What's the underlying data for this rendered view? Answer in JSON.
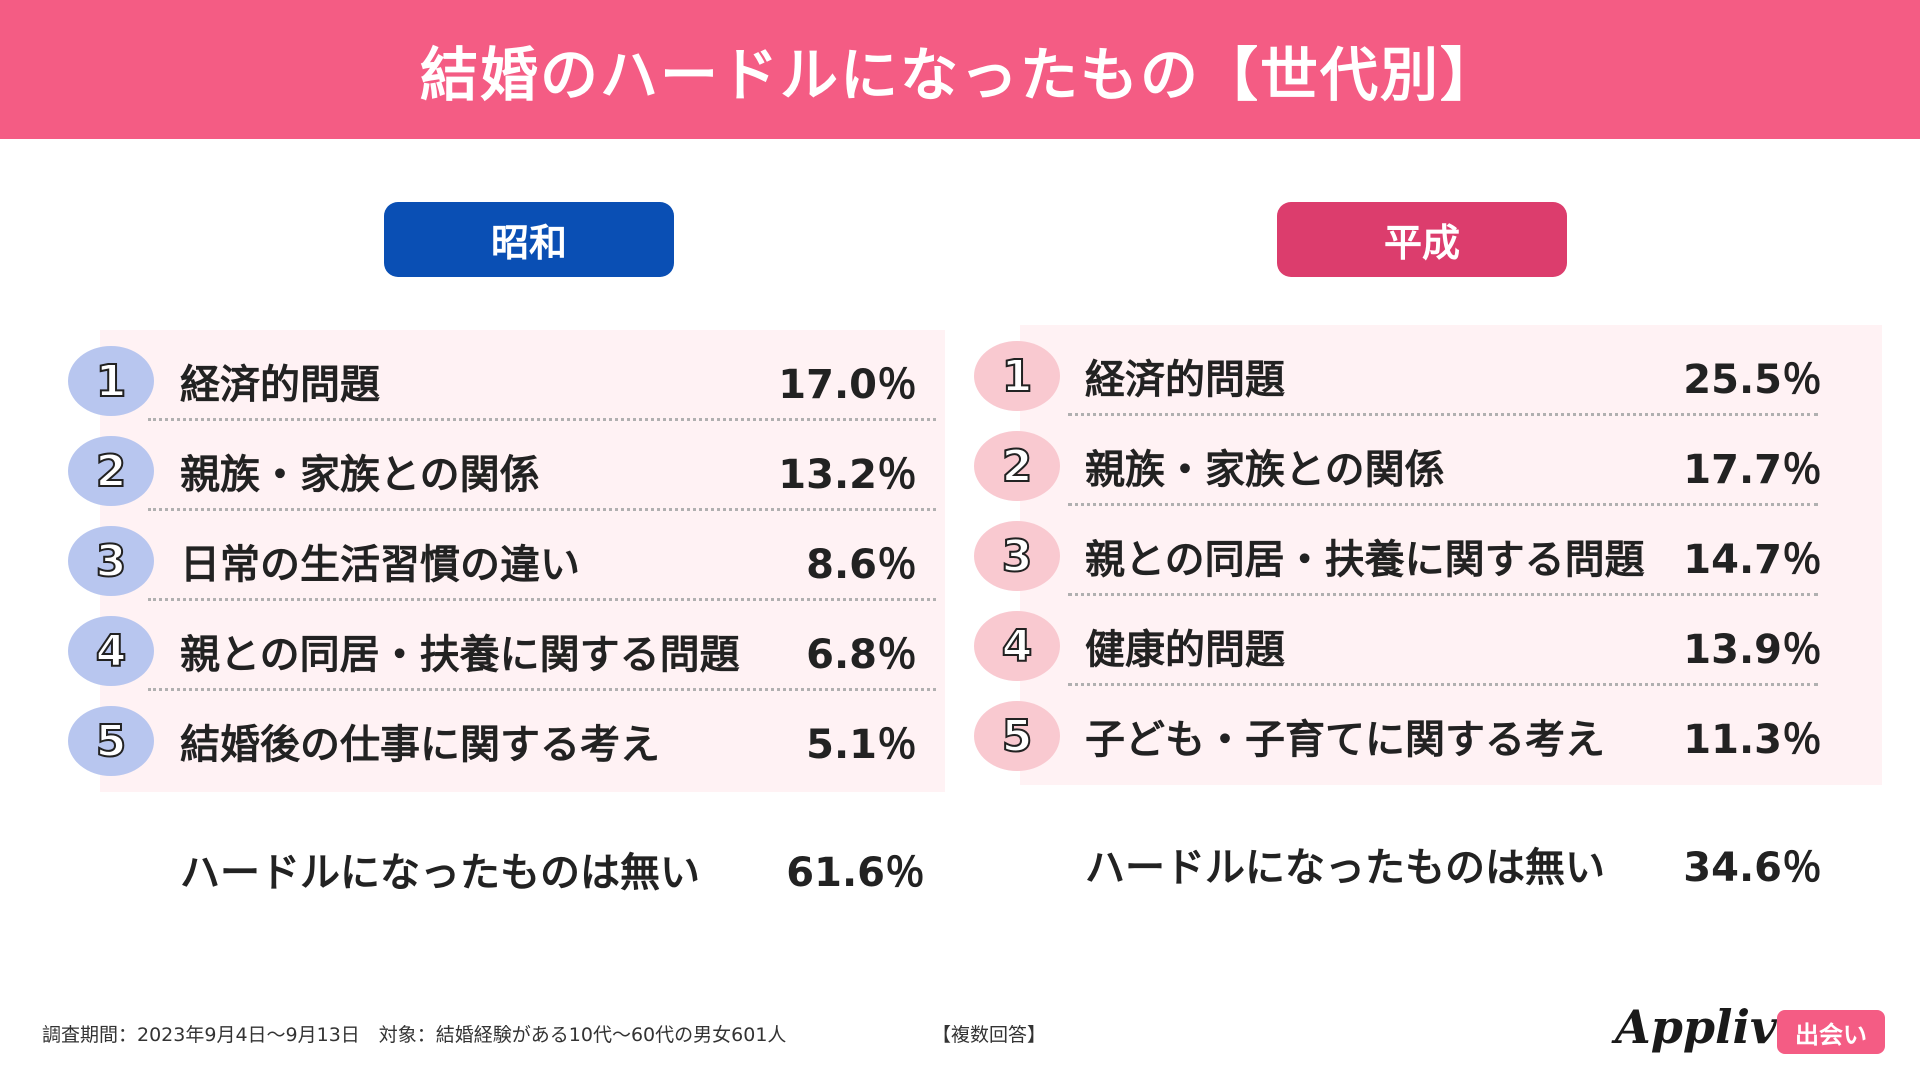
{
  "header": {
    "title": "結婚のハードルになったもの【世代別】",
    "color": "#f45c84"
  },
  "chart_data": [
    {
      "type": "table",
      "era": "昭和",
      "era_color": "#0a4fb4",
      "rank_color": "#b8c6ef",
      "rows": [
        {
          "rank": "1",
          "label": "経済的問題",
          "value": 17.0,
          "display": "17.0％"
        },
        {
          "rank": "2",
          "label": "親族・家族との関係",
          "value": 13.2,
          "display": "13.2％"
        },
        {
          "rank": "3",
          "label": "日常の生活習慣の違い",
          "value": 8.6,
          "display": "8.6％"
        },
        {
          "rank": "4",
          "label": "親との同居・扶養に関する問題",
          "value": 6.8,
          "display": "6.8％"
        },
        {
          "rank": "5",
          "label": "結婚後の仕事に関する考え",
          "value": 5.1,
          "display": "5.1％"
        }
      ],
      "none": {
        "label": "ハードルになったものは無い",
        "value": 61.6,
        "display": "61.6％"
      }
    },
    {
      "type": "table",
      "era": "平成",
      "era_color": "#dc3d6d",
      "rank_color": "#f9c9d0",
      "rows": [
        {
          "rank": "1",
          "label": "経済的問題",
          "value": 25.5,
          "display": "25.5％"
        },
        {
          "rank": "2",
          "label": "親族・家族との関係",
          "value": 17.7,
          "display": "17.7％"
        },
        {
          "rank": "3",
          "label": "親との同居・扶養に関する問題",
          "value": 14.7,
          "display": "14.7％"
        },
        {
          "rank": "4",
          "label": "健康的問題",
          "value": 13.9,
          "display": "13.9％"
        },
        {
          "rank": "5",
          "label": "子ども・子育てに関する考え",
          "value": 11.3,
          "display": "11.3％"
        }
      ],
      "none": {
        "label": "ハードルになったものは無い",
        "value": 34.6,
        "display": "34.6％"
      }
    }
  ],
  "footer": {
    "note": "調査期間：2023年9月4日〜9月13日　対象：結婚経験がある10代〜60代の男女601人",
    "answer_type": "【複数回答】"
  },
  "logo": {
    "brand": "Appliv",
    "badge": "出会い"
  }
}
